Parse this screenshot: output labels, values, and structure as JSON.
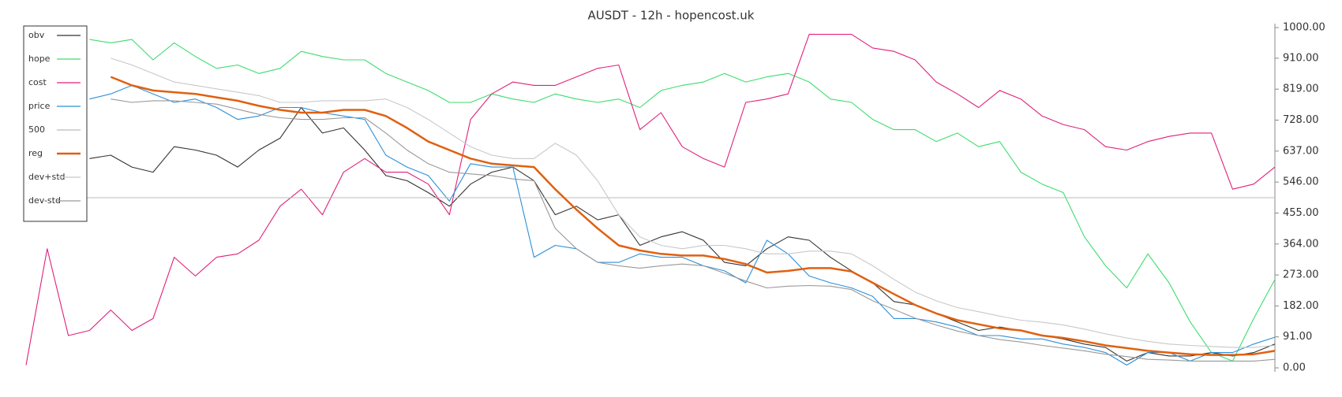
{
  "chart_data": {
    "type": "line",
    "title": "AUSDT - 12h - hopencost.uk",
    "legend": "top-left",
    "grid": false,
    "ylim": [
      0,
      1000
    ],
    "yticks": [
      {
        "value": 0,
        "label": "0.00"
      },
      {
        "value": 91,
        "label": "91.00"
      },
      {
        "value": 182,
        "label": "182.00"
      },
      {
        "value": 273,
        "label": "273.00"
      },
      {
        "value": 364,
        "label": "364.00"
      },
      {
        "value": 455,
        "label": "455.00"
      },
      {
        "value": 546,
        "label": "546.00"
      },
      {
        "value": 637,
        "label": "637.00"
      },
      {
        "value": 728,
        "label": "728.00"
      },
      {
        "value": 819,
        "label": "819.00"
      },
      {
        "value": 910,
        "label": "910.00"
      },
      {
        "value": 1000,
        "label": "1000.00"
      }
    ],
    "categories": [
      null,
      null,
      null,
      null,
      null,
      null,
      null,
      null,
      null,
      null,
      null,
      null,
      null,
      null,
      null,
      null,
      null,
      null,
      null,
      null,
      null,
      null,
      null,
      null,
      null,
      null,
      null,
      null,
      null,
      null,
      null,
      null,
      null,
      null,
      null,
      null,
      null,
      null,
      null,
      null,
      null,
      null,
      null,
      null,
      null,
      null,
      null,
      null,
      null,
      null,
      null,
      null,
      null,
      null,
      null,
      null,
      null,
      null,
      null,
      null
    ],
    "series": [
      {
        "name": "obv",
        "color": "#333333",
        "values": [
          null,
          null,
          null,
          615,
          625,
          590,
          575,
          650,
          640,
          625,
          590,
          640,
          675,
          765,
          690,
          705,
          640,
          565,
          550,
          515,
          475,
          540,
          575,
          590,
          550,
          450,
          475,
          435,
          450,
          360,
          385,
          400,
          375,
          310,
          300,
          350,
          385,
          375,
          325,
          285,
          250,
          195,
          185,
          160,
          135,
          110,
          120,
          110,
          95,
          85,
          70,
          60,
          20,
          45,
          35,
          35,
          45,
          35,
          45,
          70
        ]
      },
      {
        "name": "hope",
        "color": "#3ddc6e",
        "values": [
          null,
          null,
          null,
          965,
          955,
          965,
          905,
          955,
          915,
          880,
          890,
          865,
          880,
          930,
          915,
          905,
          905,
          865,
          840,
          815,
          780,
          780,
          805,
          790,
          780,
          805,
          790,
          780,
          790,
          765,
          815,
          830,
          840,
          865,
          840,
          855,
          865,
          840,
          790,
          780,
          730,
          700,
          700,
          665,
          690,
          650,
          665,
          575,
          540,
          515,
          385,
          300,
          235,
          335,
          250,
          135,
          45,
          20,
          145,
          260
        ]
      },
      {
        "name": "cost",
        "color": "#e0207a",
        "values": [
          8,
          350,
          95,
          110,
          170,
          110,
          145,
          325,
          270,
          325,
          335,
          375,
          475,
          525,
          450,
          575,
          615,
          575,
          575,
          540,
          450,
          730,
          805,
          840,
          830,
          830,
          855,
          880,
          890,
          700,
          750,
          650,
          615,
          590,
          780,
          790,
          805,
          980,
          980,
          980,
          940,
          930,
          905,
          840,
          805,
          765,
          815,
          790,
          740,
          715,
          700,
          650,
          640,
          665,
          680,
          690,
          690,
          525,
          540,
          590
        ]
      },
      {
        "name": "price",
        "color": "#2b8fd9",
        "values": [
          null,
          null,
          null,
          790,
          805,
          830,
          805,
          780,
          790,
          765,
          730,
          740,
          765,
          765,
          750,
          740,
          730,
          625,
          590,
          565,
          490,
          600,
          590,
          590,
          325,
          360,
          350,
          310,
          310,
          335,
          325,
          325,
          300,
          285,
          250,
          375,
          335,
          270,
          250,
          235,
          210,
          145,
          145,
          135,
          120,
          95,
          95,
          85,
          85,
          70,
          60,
          45,
          8,
          45,
          45,
          20,
          45,
          45,
          70,
          90
        ]
      },
      {
        "name": "500",
        "color": "#bbbbbb",
        "values": [
          500,
          500,
          500,
          500,
          500,
          500,
          500,
          500,
          500,
          500,
          500,
          500,
          500,
          500,
          500,
          500,
          500,
          500,
          500,
          500,
          500,
          500,
          500,
          500,
          500,
          500,
          500,
          500,
          500,
          500,
          500,
          500,
          500,
          500,
          500,
          500,
          500,
          500,
          500,
          500,
          500,
          500,
          500,
          500,
          500,
          500,
          500,
          500,
          500,
          500,
          500,
          500,
          500,
          500,
          500,
          500,
          500,
          500,
          500,
          500
        ]
      },
      {
        "name": "reg",
        "color": "#e06010",
        "values": [
          null,
          null,
          null,
          null,
          855,
          830,
          815,
          810,
          805,
          795,
          785,
          770,
          758,
          750,
          750,
          758,
          758,
          740,
          705,
          665,
          640,
          615,
          600,
          595,
          590,
          525,
          465,
          410,
          360,
          345,
          335,
          330,
          330,
          320,
          305,
          280,
          285,
          293,
          293,
          283,
          250,
          217,
          185,
          160,
          140,
          128,
          116,
          110,
          95,
          88,
          78,
          66,
          58,
          50,
          45,
          40,
          38,
          38,
          40,
          50
        ]
      },
      {
        "name": "dev+std",
        "color": "#c8c8c8",
        "values": [
          null,
          null,
          null,
          null,
          910,
          890,
          865,
          840,
          830,
          820,
          810,
          800,
          780,
          780,
          785,
          785,
          785,
          790,
          765,
          730,
          690,
          650,
          625,
          615,
          615,
          660,
          625,
          550,
          450,
          385,
          360,
          350,
          360,
          360,
          350,
          335,
          335,
          343,
          343,
          335,
          300,
          260,
          223,
          197,
          177,
          165,
          152,
          140,
          134,
          126,
          114,
          100,
          88,
          78,
          70,
          66,
          63,
          60,
          60,
          66
        ]
      },
      {
        "name": "dev-std",
        "color": "#999999",
        "values": [
          null,
          null,
          null,
          null,
          790,
          780,
          785,
          785,
          780,
          775,
          760,
          745,
          735,
          730,
          730,
          735,
          735,
          690,
          640,
          600,
          575,
          570,
          565,
          555,
          550,
          410,
          350,
          310,
          300,
          293,
          300,
          305,
          300,
          278,
          255,
          235,
          240,
          242,
          240,
          230,
          197,
          172,
          146,
          126,
          108,
          95,
          83,
          76,
          66,
          58,
          50,
          40,
          33,
          25,
          23,
          20,
          20,
          20,
          20,
          25
        ]
      }
    ]
  }
}
